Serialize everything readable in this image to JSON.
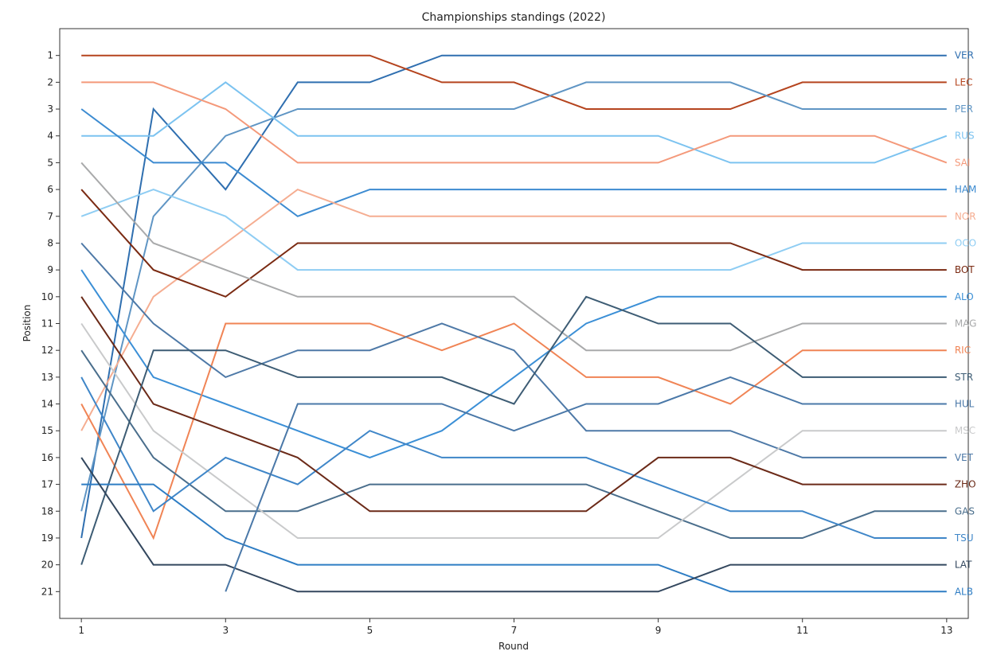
{
  "chart_data": {
    "type": "line",
    "title": "Championships standings (2022)",
    "xlabel": "Round",
    "ylabel": "Position",
    "xlim": [
      0.7,
      13.3
    ],
    "ylim": [
      22,
      0
    ],
    "y_inverted": true,
    "xticks": [
      1,
      3,
      5,
      7,
      9,
      11,
      13
    ],
    "yticks": [
      1,
      2,
      3,
      4,
      5,
      6,
      7,
      8,
      9,
      10,
      11,
      12,
      13,
      14,
      15,
      16,
      17,
      18,
      19,
      20,
      21
    ],
    "x": [
      1,
      2,
      3,
      4,
      5,
      6,
      7,
      8,
      9,
      10,
      11,
      12,
      13
    ],
    "grid": false,
    "legend": "none",
    "series": [
      {
        "name": "VER",
        "color": "#2f6fb0",
        "values": [
          19,
          3,
          6,
          2,
          2,
          1,
          1,
          1,
          1,
          1,
          1,
          1,
          1
        ]
      },
      {
        "name": "LEC",
        "color": "#b5441e",
        "values": [
          1,
          1,
          1,
          1,
          1,
          2,
          2,
          3,
          3,
          3,
          2,
          2,
          2
        ]
      },
      {
        "name": "PER",
        "color": "#5f95c4",
        "values": [
          18,
          7,
          4,
          3,
          3,
          3,
          3,
          2,
          2,
          2,
          3,
          3,
          3
        ]
      },
      {
        "name": "RUS",
        "color": "#7cc3f0",
        "values": [
          4,
          4,
          2,
          4,
          4,
          4,
          4,
          4,
          4,
          5,
          5,
          5,
          4
        ]
      },
      {
        "name": "SAI",
        "color": "#f4997a",
        "values": [
          2,
          2,
          3,
          5,
          5,
          5,
          5,
          5,
          5,
          4,
          4,
          4,
          5
        ]
      },
      {
        "name": "HAM",
        "color": "#3c8bd1",
        "values": [
          3,
          5,
          5,
          7,
          6,
          6,
          6,
          6,
          6,
          6,
          6,
          6,
          6
        ]
      },
      {
        "name": "NOR",
        "color": "#f5ad91",
        "values": [
          15,
          10,
          8,
          6,
          7,
          7,
          7,
          7,
          7,
          7,
          7,
          7,
          7
        ]
      },
      {
        "name": "OCO",
        "color": "#8fcdf3",
        "values": [
          7,
          6,
          7,
          9,
          9,
          9,
          9,
          9,
          9,
          9,
          8,
          8,
          8
        ]
      },
      {
        "name": "BOT",
        "color": "#7a2a12",
        "values": [
          6,
          9,
          10,
          8,
          8,
          8,
          8,
          8,
          8,
          8,
          9,
          9,
          9
        ]
      },
      {
        "name": "ALO",
        "color": "#3b8fd6",
        "values": [
          9,
          13,
          14,
          15,
          16,
          15,
          13,
          11,
          10,
          10,
          10,
          10,
          10
        ]
      },
      {
        "name": "MAG",
        "color": "#a9aaab",
        "values": [
          5,
          8,
          9,
          10,
          10,
          10,
          10,
          12,
          12,
          12,
          11,
          11,
          11
        ]
      },
      {
        "name": "RIC",
        "color": "#f08455",
        "values": [
          14,
          19,
          11,
          11,
          11,
          12,
          11,
          13,
          13,
          14,
          12,
          12,
          12
        ]
      },
      {
        "name": "GAS",
        "color": "#4a6e8c",
        "values": [
          12,
          16,
          18,
          18,
          17,
          17,
          17,
          17,
          18,
          19,
          19,
          18,
          18
        ]
      },
      {
        "name": "VET",
        "color": "#4e79a7",
        "values": [
          8,
          11,
          13,
          12,
          12,
          11,
          12,
          15,
          15,
          15,
          16,
          16,
          16
        ]
      },
      {
        "name": "MSC",
        "color": "#c9cacb",
        "values": [
          11,
          15,
          17,
          19,
          19,
          19,
          19,
          19,
          19,
          17,
          15,
          15,
          15
        ]
      },
      {
        "name": "TSU",
        "color": "#3f86c8",
        "values": [
          13,
          18,
          16,
          17,
          15,
          16,
          16,
          16,
          17,
          18,
          18,
          19,
          19
        ]
      },
      {
        "name": "ZHO",
        "color": "#6b2a18",
        "values": [
          10,
          14,
          15,
          16,
          18,
          18,
          18,
          18,
          16,
          16,
          17,
          17,
          17
        ]
      },
      {
        "name": "STR",
        "color": "#3d5c74",
        "values": [
          20,
          12,
          12,
          13,
          13,
          13,
          14,
          10,
          11,
          11,
          13,
          13,
          13
        ]
      },
      {
        "name": "ALB",
        "color": "#2e7dc4",
        "values": [
          17,
          17,
          19,
          20,
          20,
          20,
          20,
          20,
          20,
          21,
          21,
          21,
          21
        ]
      },
      {
        "name": "LAT",
        "color": "#33475e",
        "values": [
          16,
          20,
          20,
          21,
          21,
          21,
          21,
          21,
          21,
          20,
          20,
          20,
          20
        ]
      },
      {
        "name": "HUL",
        "color": "#4a78a8",
        "values": [
          null,
          null,
          21,
          14,
          14,
          14,
          15,
          14,
          14,
          13,
          14,
          14,
          14
        ]
      }
    ]
  }
}
